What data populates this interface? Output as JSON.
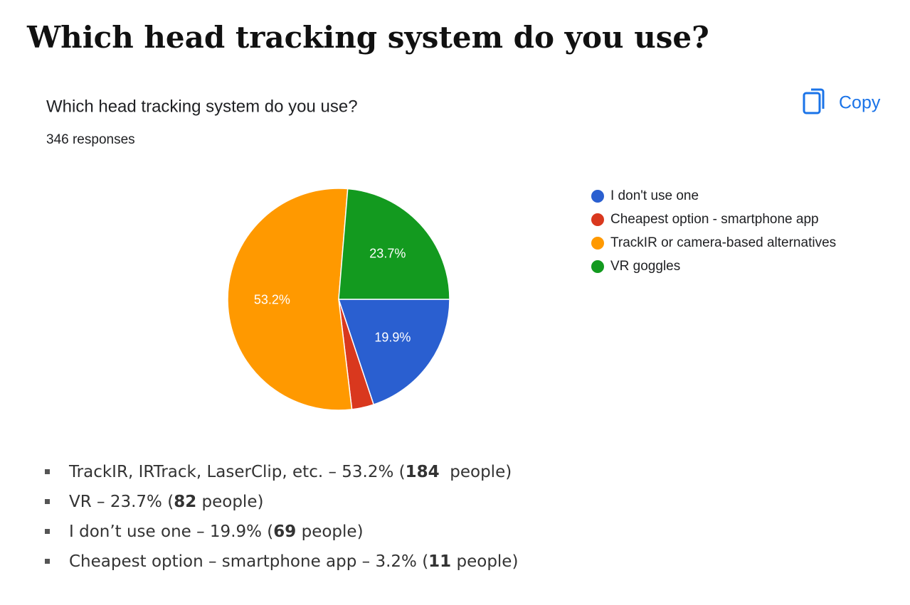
{
  "heading": "Which head tracking system do you use?",
  "copy_button": "Copy",
  "chart_data": {
    "type": "pie",
    "title": "Which head tracking system do you use?",
    "subtitle": "346 responses",
    "categories": [
      "I don't use one",
      "Cheapest option - smartphone app",
      "TrackIR or camera-based alternatives",
      "VR goggles"
    ],
    "values": [
      19.9,
      3.2,
      53.2,
      23.7
    ],
    "value_labels": [
      "19.9%",
      null,
      "53.2%",
      "23.7%"
    ],
    "colors": [
      "#2a5fd0",
      "#d9381e",
      "#ff9900",
      "#139a1f"
    ],
    "legend": "right"
  },
  "list": [
    {
      "before": "TrackIR, IRTrack, LaserClip, etc. – 53.2% (",
      "count": 184,
      "after": "  people)"
    },
    {
      "before": "VR – 23.7% (",
      "count": 82,
      "after": " people)"
    },
    {
      "before": "I don’t use one – 19.9% (",
      "count": 69,
      "after": " people)"
    },
    {
      "before": "Cheapest option – smartphone app – 3.2% (",
      "count": 11,
      "after": " people)"
    }
  ]
}
